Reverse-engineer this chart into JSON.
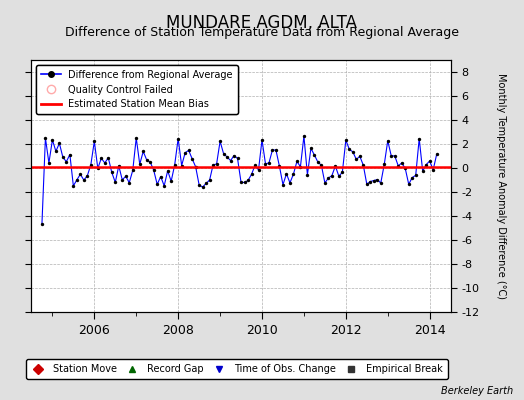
{
  "title": "MUNDARE AGDM, ALTA",
  "subtitle": "Difference of Station Temperature Data from Regional Average",
  "ylabel": "Monthly Temperature Anomaly Difference (°C)",
  "xlim": [
    2004.5,
    2014.5
  ],
  "ylim": [
    -12,
    9
  ],
  "yticks": [
    -12,
    -10,
    -8,
    -6,
    -4,
    -2,
    0,
    2,
    4,
    6,
    8
  ],
  "xticks": [
    2006,
    2008,
    2010,
    2012,
    2014
  ],
  "background_color": "#e0e0e0",
  "plot_bg_color": "#ffffff",
  "line_color": "#0000ff",
  "marker_color": "#000000",
  "bias_color": "#ff0000",
  "bias_value": 0.1,
  "title_fontsize": 12,
  "subtitle_fontsize": 9,
  "watermark": "Berkeley Earth",
  "legend1_labels": [
    "Difference from Regional Average",
    "Quality Control Failed",
    "Estimated Station Mean Bias"
  ],
  "legend2_labels": [
    "Station Move",
    "Record Gap",
    "Time of Obs. Change",
    "Empirical Break"
  ],
  "legend2_colors": [
    "#cc0000",
    "#006600",
    "#0000cc",
    "#333333"
  ],
  "seed": 42
}
